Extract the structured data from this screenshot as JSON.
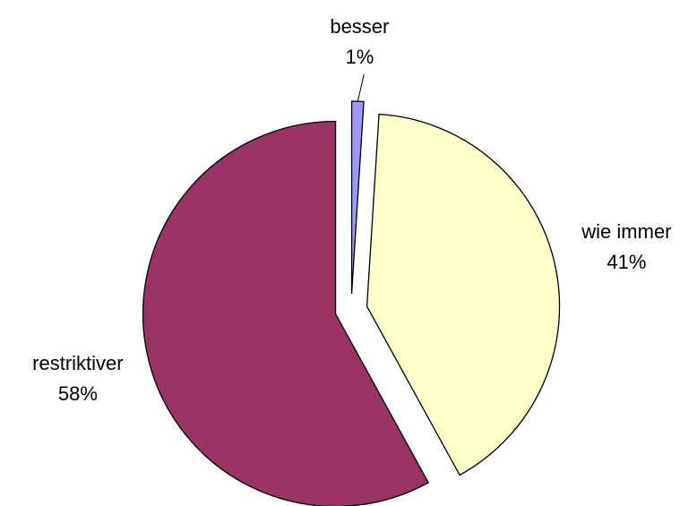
{
  "chart_data": {
    "type": "pie",
    "categories": [
      "besser",
      "wie immer",
      "restriktiver"
    ],
    "values": [
      1,
      41,
      58
    ],
    "value_labels": [
      "1%",
      "41%",
      "58%"
    ],
    "colors": [
      "#9999ff",
      "#ffffcc",
      "#993366"
    ],
    "exploded": true
  }
}
